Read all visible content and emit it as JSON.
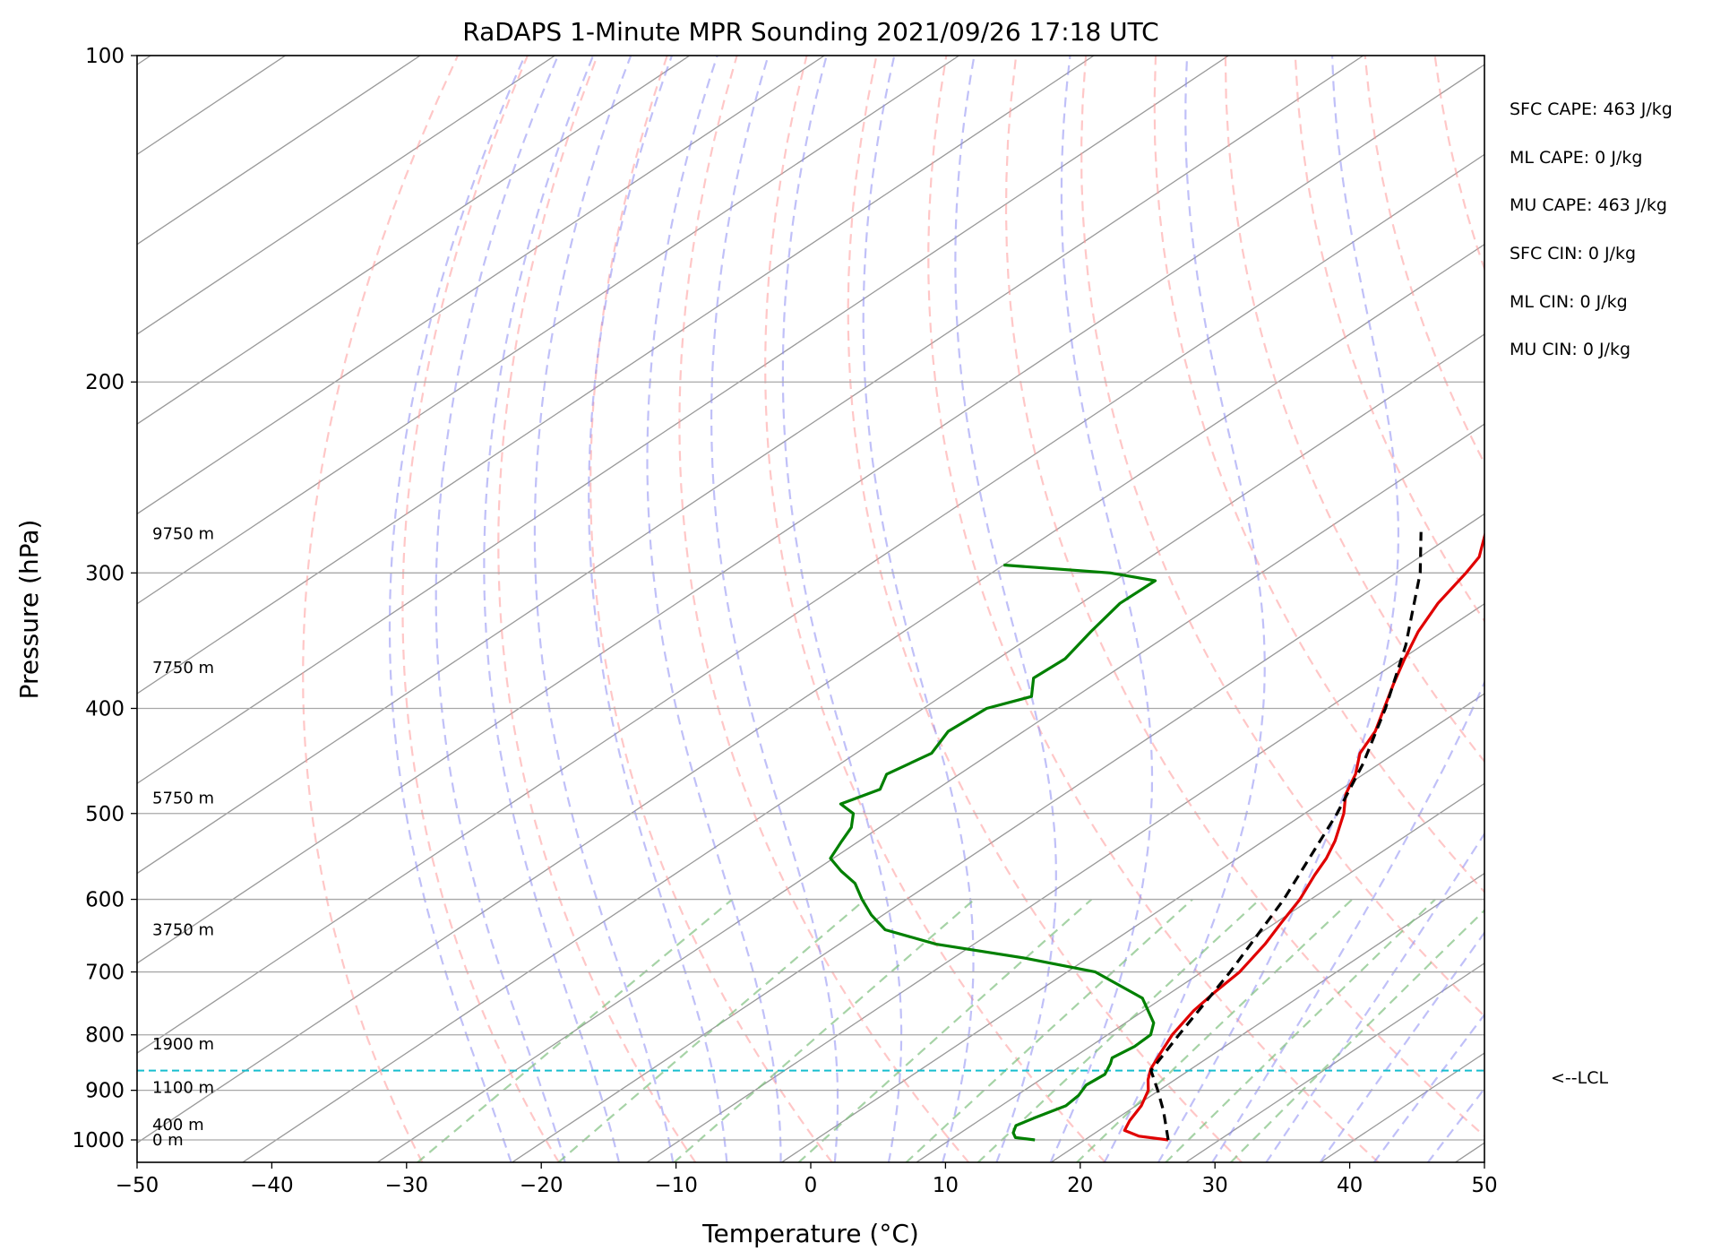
{
  "chart_data": {
    "type": "line",
    "chart_kind": "Skew-T log-P sounding",
    "title": "RaDAPS 1-Minute MPR Sounding 2021/09/26 17:18 UTC",
    "xlabel": "Temperature (°C)",
    "ylabel": "Pressure (hPa)",
    "xlim": [
      -50,
      50
    ],
    "ylim": [
      1050,
      100
    ],
    "y_scale": "log",
    "grid": true,
    "x_ticks": [
      "−50",
      "−40",
      "−30",
      "−20",
      "−10",
      "0",
      "10",
      "20",
      "30",
      "40",
      "50"
    ],
    "y_ticks": [
      "100",
      "200",
      "300",
      "400",
      "500",
      "600",
      "700",
      "800",
      "900",
      "1000"
    ],
    "colors": {
      "temperature": "#e00000",
      "dewpoint": "#008000",
      "parcel": "#000000",
      "dry_adiabats": "#ff9999",
      "moist_adiabats": "#8c8cf2",
      "mixing_ratio": "#80c080",
      "isotherms": "#999999",
      "lcl_line": "#17becf"
    },
    "series": [
      {
        "role": "temperature",
        "points": [
          {
            "p": 1000,
            "t": 26.2
          },
          {
            "p": 992,
            "t": 23.6
          },
          {
            "p": 980,
            "t": 21.9
          },
          {
            "p": 960,
            "t": 21.2
          },
          {
            "p": 930,
            "t": 20.4
          },
          {
            "p": 900,
            "t": 19.2
          },
          {
            "p": 880,
            "t": 18.0
          },
          {
            "p": 860,
            "t": 17.0
          },
          {
            "p": 830,
            "t": 15.9
          },
          {
            "p": 800,
            "t": 14.8
          },
          {
            "p": 760,
            "t": 13.7
          },
          {
            "p": 730,
            "t": 13.2
          },
          {
            "p": 700,
            "t": 12.8
          },
          {
            "p": 660,
            "t": 11.6
          },
          {
            "p": 630,
            "t": 10.4
          },
          {
            "p": 600,
            "t": 9.2
          },
          {
            "p": 570,
            "t": 7.6
          },
          {
            "p": 550,
            "t": 6.6
          },
          {
            "p": 530,
            "t": 5.3
          },
          {
            "p": 500,
            "t": 2.9
          },
          {
            "p": 480,
            "t": 0.9
          },
          {
            "p": 460,
            "t": -0.6
          },
          {
            "p": 440,
            "t": -2.6
          },
          {
            "p": 420,
            "t": -3.9
          },
          {
            "p": 400,
            "t": -5.8
          },
          {
            "p": 380,
            "t": -7.8
          },
          {
            "p": 360,
            "t": -9.8
          },
          {
            "p": 340,
            "t": -11.8
          },
          {
            "p": 320,
            "t": -13.5
          },
          {
            "p": 300,
            "t": -14.8
          },
          {
            "p": 290,
            "t": -15.6
          },
          {
            "p": 275,
            "t": -17.9
          }
        ]
      },
      {
        "role": "dewpoint",
        "points": [
          {
            "p": 1000,
            "t": 16.3
          },
          {
            "p": 995,
            "t": 14.6
          },
          {
            "p": 985,
            "t": 13.9
          },
          {
            "p": 970,
            "t": 13.3
          },
          {
            "p": 955,
            "t": 13.8
          },
          {
            "p": 930,
            "t": 14.8
          },
          {
            "p": 910,
            "t": 14.6
          },
          {
            "p": 890,
            "t": 14.0
          },
          {
            "p": 870,
            "t": 14.2
          },
          {
            "p": 850,
            "t": 13.4
          },
          {
            "p": 840,
            "t": 12.9
          },
          {
            "p": 820,
            "t": 13.3
          },
          {
            "p": 800,
            "t": 13.2
          },
          {
            "p": 780,
            "t": 12.1
          },
          {
            "p": 740,
            "t": 8.5
          },
          {
            "p": 700,
            "t": 2.1
          },
          {
            "p": 680,
            "t": -4.6
          },
          {
            "p": 660,
            "t": -12.8
          },
          {
            "p": 640,
            "t": -18.2
          },
          {
            "p": 620,
            "t": -20.9
          },
          {
            "p": 600,
            "t": -23.3
          },
          {
            "p": 580,
            "t": -25.6
          },
          {
            "p": 565,
            "t": -28.0
          },
          {
            "p": 550,
            "t": -30.2
          },
          {
            "p": 530,
            "t": -31.3
          },
          {
            "p": 515,
            "t": -32.1
          },
          {
            "p": 500,
            "t": -33.5
          },
          {
            "p": 490,
            "t": -35.5
          },
          {
            "p": 475,
            "t": -34.2
          },
          {
            "p": 460,
            "t": -35.4
          },
          {
            "p": 440,
            "t": -34.4
          },
          {
            "p": 420,
            "t": -35.6
          },
          {
            "p": 400,
            "t": -35.3
          },
          {
            "p": 390,
            "t": -33.3
          },
          {
            "p": 375,
            "t": -35.2
          },
          {
            "p": 360,
            "t": -35.0
          },
          {
            "p": 340,
            "t": -36.1
          },
          {
            "p": 320,
            "t": -37.1
          },
          {
            "p": 305,
            "t": -37.0
          },
          {
            "p": 300,
            "t": -41.2
          },
          {
            "p": 295,
            "t": -50.0
          }
        ]
      },
      {
        "role": "parcel",
        "points": [
          {
            "p": 1000,
            "t": 26.2
          },
          {
            "p": 940,
            "t": 22.6
          },
          {
            "p": 900,
            "t": 19.9
          },
          {
            "p": 863,
            "t": 17.2
          },
          {
            "p": 800,
            "t": 15.3
          },
          {
            "p": 700,
            "t": 12.1
          },
          {
            "p": 600,
            "t": 8.0
          },
          {
            "p": 500,
            "t": 2.4
          },
          {
            "p": 450,
            "t": -1.2
          },
          {
            "p": 400,
            "t": -5.7
          },
          {
            "p": 350,
            "t": -11.2
          },
          {
            "p": 300,
            "t": -18.2
          },
          {
            "p": 275,
            "t": -22.7
          }
        ]
      }
    ],
    "lcl": {
      "p": 863,
      "label": "<--LCL"
    },
    "height_labels": [
      {
        "p": 1000,
        "text": "0 m"
      },
      {
        "p": 968,
        "text": "400 m"
      },
      {
        "p": 895,
        "text": "1100 m"
      },
      {
        "p": 816,
        "text": "1900 m"
      },
      {
        "p": 640,
        "text": "3750 m"
      },
      {
        "p": 484,
        "text": "5750 m"
      },
      {
        "p": 367,
        "text": "7750 m"
      },
      {
        "p": 276,
        "text": "9750 m"
      }
    ],
    "indices": [
      "SFC CAPE: 463 J/kg",
      "ML CAPE: 0 J/kg",
      "MU CAPE: 463 J/kg",
      "SFC CIN: 0 J/kg",
      "ML CIN: 0 J/kg",
      "MU CIN: 0 J/kg"
    ]
  }
}
